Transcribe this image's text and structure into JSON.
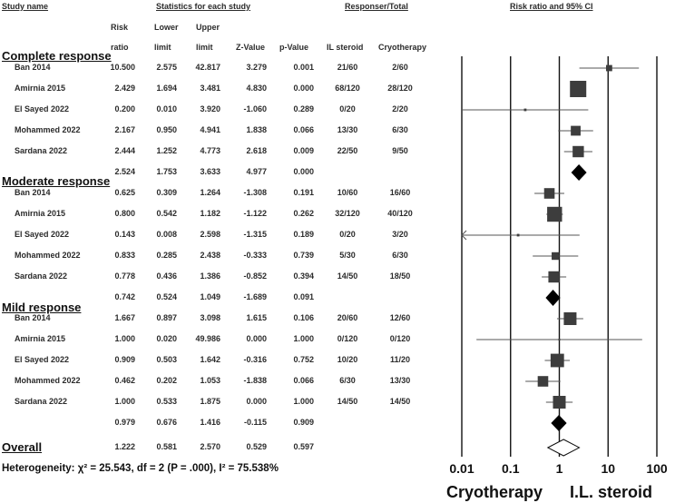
{
  "headers": {
    "study_name": "Study name",
    "stats": "Statistics for each study",
    "responser": "Responser/Total",
    "rr": "Risk ratio and 95% CI",
    "risk": "Risk",
    "ratio": "ratio",
    "lower": "Lower",
    "lower_limit": "limit",
    "upper": "Upper",
    "upper_limit": "limit",
    "z": "Z-Value",
    "p": "p-Value",
    "il": "IL steroid",
    "cryo": "Cryotherapy"
  },
  "groups": [
    {
      "title": "Complete response",
      "studies": [
        {
          "name": "Ban 2014",
          "rr": "10.500",
          "lo": "2.575",
          "hi": "42.817",
          "z": "3.279",
          "p": "0.001",
          "il": "21/60",
          "cryo": "2/60"
        },
        {
          "name": "Amirnia 2015",
          "rr": "2.429",
          "lo": "1.694",
          "hi": "3.481",
          "z": "4.830",
          "p": "0.000",
          "il": "68/120",
          "cryo": "28/120"
        },
        {
          "name": "El Sayed 2022",
          "rr": "0.200",
          "lo": "0.010",
          "hi": "3.920",
          "z": "-1.060",
          "p": "0.289",
          "il": "0/20",
          "cryo": "2/20"
        },
        {
          "name": "Mohammed 2022",
          "rr": "2.167",
          "lo": "0.950",
          "hi": "4.941",
          "z": "1.838",
          "p": "0.066",
          "il": "13/30",
          "cryo": "6/30"
        },
        {
          "name": "Sardana 2022",
          "rr": "2.444",
          "lo": "1.252",
          "hi": "4.773",
          "z": "2.618",
          "p": "0.009",
          "il": "22/50",
          "cryo": "9/50"
        }
      ],
      "summary": {
        "rr": "2.524",
        "lo": "1.753",
        "hi": "3.633",
        "z": "4.977",
        "p": "0.000"
      }
    },
    {
      "title": "Moderate response",
      "studies": [
        {
          "name": "Ban 2014",
          "rr": "0.625",
          "lo": "0.309",
          "hi": "1.264",
          "z": "-1.308",
          "p": "0.191",
          "il": "10/60",
          "cryo": "16/60"
        },
        {
          "name": "Amirnia 2015",
          "rr": "0.800",
          "lo": "0.542",
          "hi": "1.182",
          "z": "-1.122",
          "p": "0.262",
          "il": "32/120",
          "cryo": "40/120"
        },
        {
          "name": "El Sayed 2022",
          "rr": "0.143",
          "lo": "0.008",
          "hi": "2.598",
          "z": "-1.315",
          "p": "0.189",
          "il": "0/20",
          "cryo": "3/20"
        },
        {
          "name": "Mohammed 2022",
          "rr": "0.833",
          "lo": "0.285",
          "hi": "2.438",
          "z": "-0.333",
          "p": "0.739",
          "il": "5/30",
          "cryo": "6/30"
        },
        {
          "name": "Sardana 2022",
          "rr": "0.778",
          "lo": "0.436",
          "hi": "1.386",
          "z": "-0.852",
          "p": "0.394",
          "il": "14/50",
          "cryo": "18/50"
        }
      ],
      "summary": {
        "rr": "0.742",
        "lo": "0.524",
        "hi": "1.049",
        "z": "-1.689",
        "p": "0.091"
      }
    },
    {
      "title": "Mild response",
      "studies": [
        {
          "name": "Ban 2014",
          "rr": "1.667",
          "lo": "0.897",
          "hi": "3.098",
          "z": "1.615",
          "p": "0.106",
          "il": "20/60",
          "cryo": "12/60"
        },
        {
          "name": "Amirnia 2015",
          "rr": "1.000",
          "lo": "0.020",
          "hi": "49.986",
          "z": "0.000",
          "p": "1.000",
          "il": "0/120",
          "cryo": "0/120"
        },
        {
          "name": "El Sayed 2022",
          "rr": "0.909",
          "lo": "0.503",
          "hi": "1.642",
          "z": "-0.316",
          "p": "0.752",
          "il": "10/20",
          "cryo": "11/20"
        },
        {
          "name": "Mohammed 2022",
          "rr": "0.462",
          "lo": "0.202",
          "hi": "1.053",
          "z": "-1.838",
          "p": "0.066",
          "il": "6/30",
          "cryo": "13/30"
        },
        {
          "name": "Sardana 2022",
          "rr": "1.000",
          "lo": "0.533",
          "hi": "1.875",
          "z": "0.000",
          "p": "1.000",
          "il": "14/50",
          "cryo": "14/50"
        }
      ],
      "summary": {
        "rr": "0.979",
        "lo": "0.676",
        "hi": "1.416",
        "z": "-0.115",
        "p": "0.909"
      }
    }
  ],
  "overall": {
    "title": "Overall",
    "rr": "1.222",
    "lo": "0.581",
    "hi": "2.570",
    "z": "0.529",
    "p": "0.597"
  },
  "heterogeneity": "Heterogeneity: χ² = 25.543, df = 2 (P = .000), I² = 75.538%",
  "chart_data": {
    "type": "scatter",
    "title": "Risk ratio and 95% CI",
    "x_scale": "log",
    "xlim": [
      0.01,
      100
    ],
    "x_ticks": [
      "0.01",
      "0.1",
      "1",
      "10",
      "100"
    ],
    "left_label": "Cryotherapy",
    "right_label": "I.L. steroid",
    "rows": [
      {
        "rr": 10.5,
        "lo": 2.575,
        "hi": 42.817,
        "kind": "study",
        "weight": 0.3
      },
      {
        "rr": 2.429,
        "lo": 1.694,
        "hi": 3.481,
        "kind": "study",
        "weight": 1.0
      },
      {
        "rr": 0.2,
        "lo": 0.01,
        "hi": 3.92,
        "kind": "study",
        "weight": 0.05
      },
      {
        "rr": 2.167,
        "lo": 0.95,
        "hi": 4.941,
        "kind": "study",
        "weight": 0.55
      },
      {
        "rr": 2.444,
        "lo": 1.252,
        "hi": 4.773,
        "kind": "study",
        "weight": 0.65
      },
      {
        "rr": 2.524,
        "lo": 1.753,
        "hi": 3.633,
        "kind": "summary"
      },
      {
        "rr": 0.625,
        "lo": 0.309,
        "hi": 1.264,
        "kind": "study",
        "weight": 0.6
      },
      {
        "rr": 0.8,
        "lo": 0.542,
        "hi": 1.182,
        "kind": "study",
        "weight": 0.9
      },
      {
        "rr": 0.143,
        "lo": 0.008,
        "hi": 2.598,
        "kind": "study",
        "weight": 0.05,
        "arrow_left": true
      },
      {
        "rr": 0.833,
        "lo": 0.285,
        "hi": 2.438,
        "kind": "study",
        "weight": 0.4
      },
      {
        "rr": 0.778,
        "lo": 0.436,
        "hi": 1.386,
        "kind": "study",
        "weight": 0.65
      },
      {
        "rr": 0.742,
        "lo": 0.524,
        "hi": 1.049,
        "kind": "summary"
      },
      {
        "rr": 1.667,
        "lo": 0.897,
        "hi": 3.098,
        "kind": "study",
        "weight": 0.75
      },
      {
        "rr": 1.0,
        "lo": 0.02,
        "hi": 49.986,
        "kind": "study",
        "weight": 0.0
      },
      {
        "rr": 0.909,
        "lo": 0.503,
        "hi": 1.642,
        "kind": "study",
        "weight": 0.8
      },
      {
        "rr": 0.462,
        "lo": 0.202,
        "hi": 1.053,
        "kind": "study",
        "weight": 0.6
      },
      {
        "rr": 1.0,
        "lo": 0.533,
        "hi": 1.875,
        "kind": "study",
        "weight": 0.75
      },
      {
        "rr": 0.979,
        "lo": 0.676,
        "hi": 1.416,
        "kind": "summary"
      },
      {
        "rr": 1.222,
        "lo": 0.581,
        "hi": 2.57,
        "kind": "overall"
      }
    ]
  }
}
